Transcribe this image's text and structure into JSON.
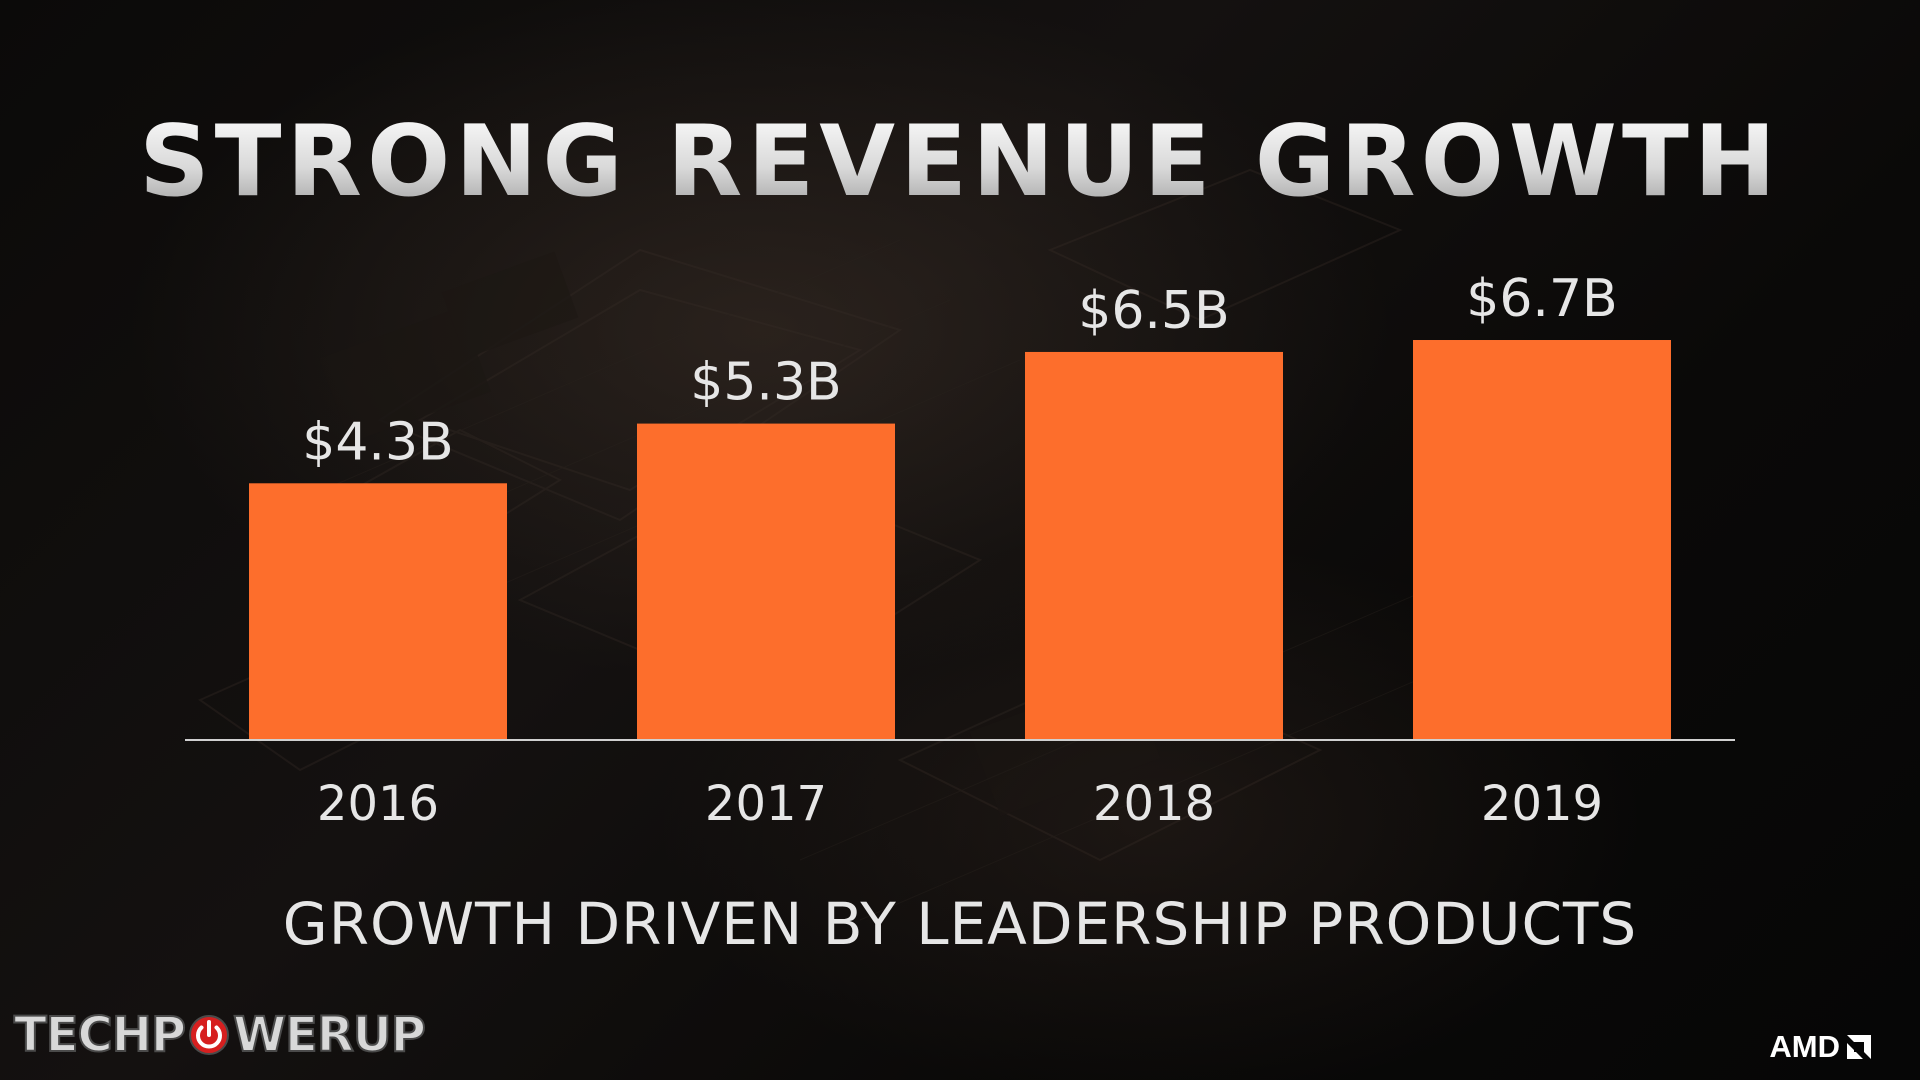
{
  "slide": {
    "title": "STRONG REVENUE GROWTH",
    "subtitle": "GROWTH DRIVEN BY LEADERSHIP PRODUCTS",
    "watermark": {
      "text_before": "TECHP",
      "icon": "power-icon",
      "text_after": "WERUP"
    },
    "brand": {
      "name": "AMD",
      "icon": "amd-arrow-icon"
    }
  },
  "colors": {
    "bar": "#fd6e2c",
    "axis": "#d0d0d0",
    "text": "#e6e6e6"
  },
  "chart_data": {
    "type": "bar",
    "categories": [
      "2016",
      "2017",
      "2018",
      "2019"
    ],
    "values": [
      4.3,
      5.3,
      6.5,
      6.7
    ],
    "value_labels": [
      "$4.3B",
      "$5.3B",
      "$6.5B",
      "$6.7B"
    ],
    "title": "STRONG REVENUE GROWTH",
    "xlabel": "",
    "ylabel": "",
    "grid": false,
    "legend": "none",
    "y_axis_visible": false
  }
}
